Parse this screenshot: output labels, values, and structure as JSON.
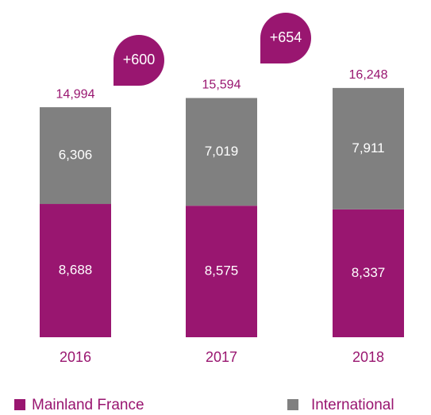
{
  "chart_data": {
    "type": "stacked_bar",
    "categories": [
      "2016",
      "2017",
      "2018"
    ],
    "series": [
      {
        "name": "Mainland France",
        "color": "#991670",
        "values": [
          8688,
          8575,
          8337
        ],
        "value_labels": [
          "8,688",
          "8,575",
          "8,337"
        ]
      },
      {
        "name": "International",
        "color": "#808080",
        "values": [
          6306,
          7019,
          7911
        ],
        "value_labels": [
          "6,306",
          "7,019",
          "7,911"
        ]
      }
    ],
    "totals": {
      "values": [
        14994,
        15594,
        16248
      ],
      "value_labels": [
        "14,994",
        "15,594",
        "16,248"
      ]
    },
    "annotations": [
      {
        "text": "+600"
      },
      {
        "text": "+654"
      }
    ]
  }
}
